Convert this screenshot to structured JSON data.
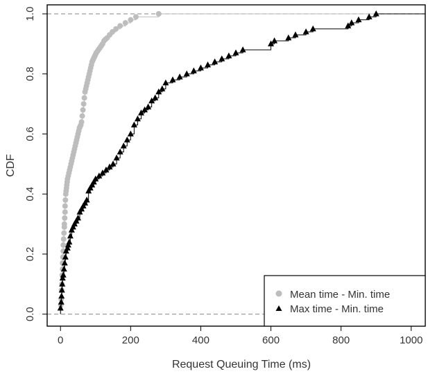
{
  "chart_data": {
    "type": "line",
    "subtype": "empirical-cdf-step",
    "xlabel": "Request Queuing Time (ms)",
    "ylabel": "CDF",
    "xlim": [
      -38,
      1040
    ],
    "ylim": [
      -0.04,
      1.03
    ],
    "xticks": [
      0,
      200,
      400,
      600,
      800,
      1000
    ],
    "xtick_labels": [
      "0",
      "200",
      "400",
      "600",
      "800",
      "1000"
    ],
    "yticks": [
      0.0,
      0.2,
      0.4,
      0.6,
      0.8,
      1.0
    ],
    "ytick_labels": [
      "0.0",
      "0.2",
      "0.4",
      "0.6",
      "0.8",
      "1.0"
    ],
    "reference_lines_y": [
      0,
      1
    ],
    "grid": false,
    "legend_position": "bottom-right",
    "series": [
      {
        "name": "Mean time - Min. time",
        "marker": "circle",
        "color": "#bdbdbd",
        "x": [
          1,
          2,
          3,
          4,
          5,
          6,
          6,
          7,
          8,
          8,
          9,
          10,
          11,
          11,
          12,
          13,
          13,
          14,
          15,
          16,
          17,
          18,
          19,
          20,
          22,
          24,
          26,
          28,
          30,
          32,
          34,
          36,
          38,
          40,
          42,
          44,
          46,
          48,
          50,
          52,
          54,
          56,
          58,
          60,
          62,
          64,
          66,
          68,
          70,
          72,
          74,
          76,
          78,
          80,
          82,
          84,
          86,
          88,
          90,
          92,
          94,
          96,
          98,
          100,
          102,
          105,
          108,
          111,
          114,
          117,
          120,
          124,
          128,
          133,
          140,
          148,
          158,
          170,
          185,
          200,
          215,
          280
        ],
        "y": [
          0.03,
          0.05,
          0.08,
          0.1,
          0.13,
          0.15,
          0.17,
          0.19,
          0.21,
          0.23,
          0.25,
          0.27,
          0.29,
          0.3,
          0.32,
          0.34,
          0.36,
          0.38,
          0.4,
          0.41,
          0.42,
          0.43,
          0.44,
          0.45,
          0.46,
          0.47,
          0.48,
          0.49,
          0.5,
          0.51,
          0.52,
          0.53,
          0.54,
          0.55,
          0.56,
          0.57,
          0.58,
          0.59,
          0.6,
          0.61,
          0.62,
          0.625,
          0.63,
          0.64,
          0.66,
          0.68,
          0.7,
          0.72,
          0.74,
          0.75,
          0.76,
          0.77,
          0.78,
          0.79,
          0.8,
          0.81,
          0.82,
          0.83,
          0.84,
          0.845,
          0.85,
          0.855,
          0.86,
          0.865,
          0.87,
          0.875,
          0.88,
          0.885,
          0.89,
          0.895,
          0.9,
          0.91,
          0.915,
          0.92,
          0.93,
          0.94,
          0.95,
          0.96,
          0.97,
          0.98,
          0.99,
          1.0
        ]
      },
      {
        "name": "Max time - Min. time",
        "marker": "triangle",
        "color": "#000000",
        "x": [
          0,
          2,
          3,
          4,
          5,
          6,
          8,
          10,
          12,
          14,
          16,
          20,
          22,
          25,
          28,
          32,
          36,
          40,
          45,
          50,
          55,
          60,
          65,
          70,
          75,
          80,
          85,
          90,
          95,
          100,
          110,
          120,
          130,
          140,
          150,
          160,
          170,
          180,
          190,
          200,
          210,
          220,
          230,
          240,
          250,
          260,
          270,
          280,
          290,
          300,
          320,
          340,
          360,
          380,
          400,
          420,
          440,
          460,
          480,
          500,
          520,
          600,
          610,
          650,
          670,
          700,
          720,
          820,
          830,
          850,
          880,
          900
        ],
        "y": [
          0.02,
          0.04,
          0.06,
          0.08,
          0.1,
          0.12,
          0.13,
          0.15,
          0.17,
          0.19,
          0.21,
          0.22,
          0.23,
          0.24,
          0.26,
          0.28,
          0.29,
          0.3,
          0.31,
          0.32,
          0.34,
          0.35,
          0.36,
          0.37,
          0.38,
          0.41,
          0.42,
          0.43,
          0.44,
          0.45,
          0.46,
          0.47,
          0.48,
          0.49,
          0.5,
          0.52,
          0.54,
          0.56,
          0.58,
          0.6,
          0.63,
          0.65,
          0.67,
          0.68,
          0.69,
          0.71,
          0.72,
          0.74,
          0.75,
          0.77,
          0.78,
          0.79,
          0.8,
          0.81,
          0.82,
          0.83,
          0.84,
          0.85,
          0.86,
          0.87,
          0.88,
          0.9,
          0.91,
          0.92,
          0.93,
          0.94,
          0.95,
          0.96,
          0.97,
          0.98,
          0.99,
          1.0
        ]
      }
    ]
  }
}
